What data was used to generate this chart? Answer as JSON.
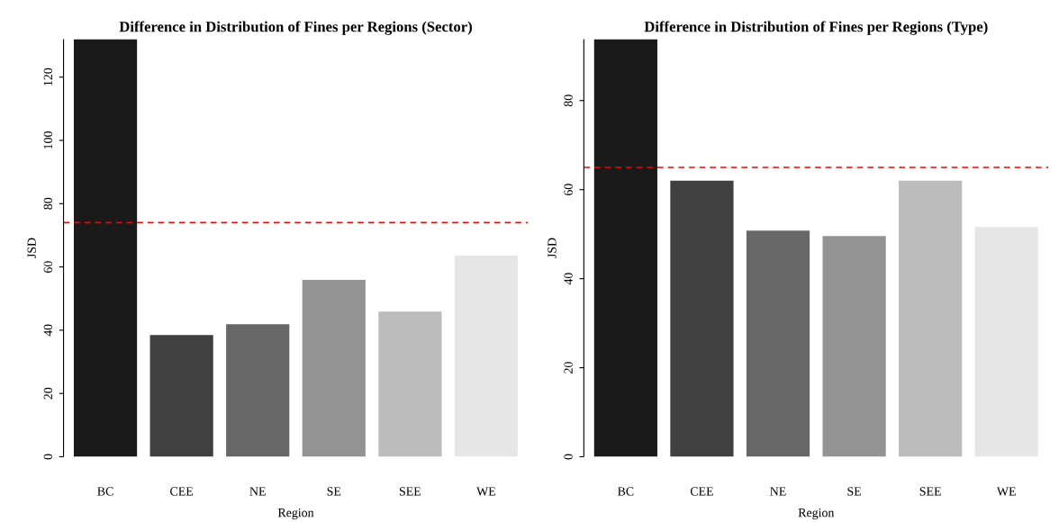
{
  "chart_data": [
    {
      "type": "bar",
      "title": "Difference in Distribution of Fines per Regions (Sector)",
      "xlabel": "Region",
      "ylabel": "JSD",
      "categories": [
        "BC",
        "CEE",
        "NE",
        "SE",
        "SEE",
        "WE"
      ],
      "values": [
        132,
        38.5,
        41.9,
        55.9,
        45.9,
        63.6
      ],
      "colors": [
        "#1a1a1a",
        "#404040",
        "#676767",
        "#939393",
        "#bcbcbc",
        "#e6e6e6"
      ],
      "ylim": [
        0,
        132
      ],
      "yticks": [
        0,
        20,
        40,
        60,
        80,
        100,
        120
      ],
      "grid": false,
      "ref_lines": [
        {
          "axis": "y",
          "value": 74,
          "color": "#ff0000",
          "line_style": "dashed"
        }
      ]
    },
    {
      "type": "bar",
      "title": "Difference in Distribution of Fines per Regions (Type)",
      "xlabel": "Region",
      "ylabel": "JSD",
      "categories": [
        "BC",
        "CEE",
        "NE",
        "SE",
        "SEE",
        "WE"
      ],
      "values": [
        93.8,
        62,
        50.8,
        49.6,
        62,
        51.6
      ],
      "colors": [
        "#1a1a1a",
        "#404040",
        "#676767",
        "#939393",
        "#bcbcbc",
        "#e6e6e6"
      ],
      "ylim": [
        0,
        93.8
      ],
      "yticks": [
        0,
        20,
        40,
        60,
        80
      ],
      "grid": false,
      "ref_lines": [
        {
          "axis": "y",
          "value": 65,
          "color": "#ff0000",
          "line_style": "dashed"
        }
      ]
    }
  ]
}
